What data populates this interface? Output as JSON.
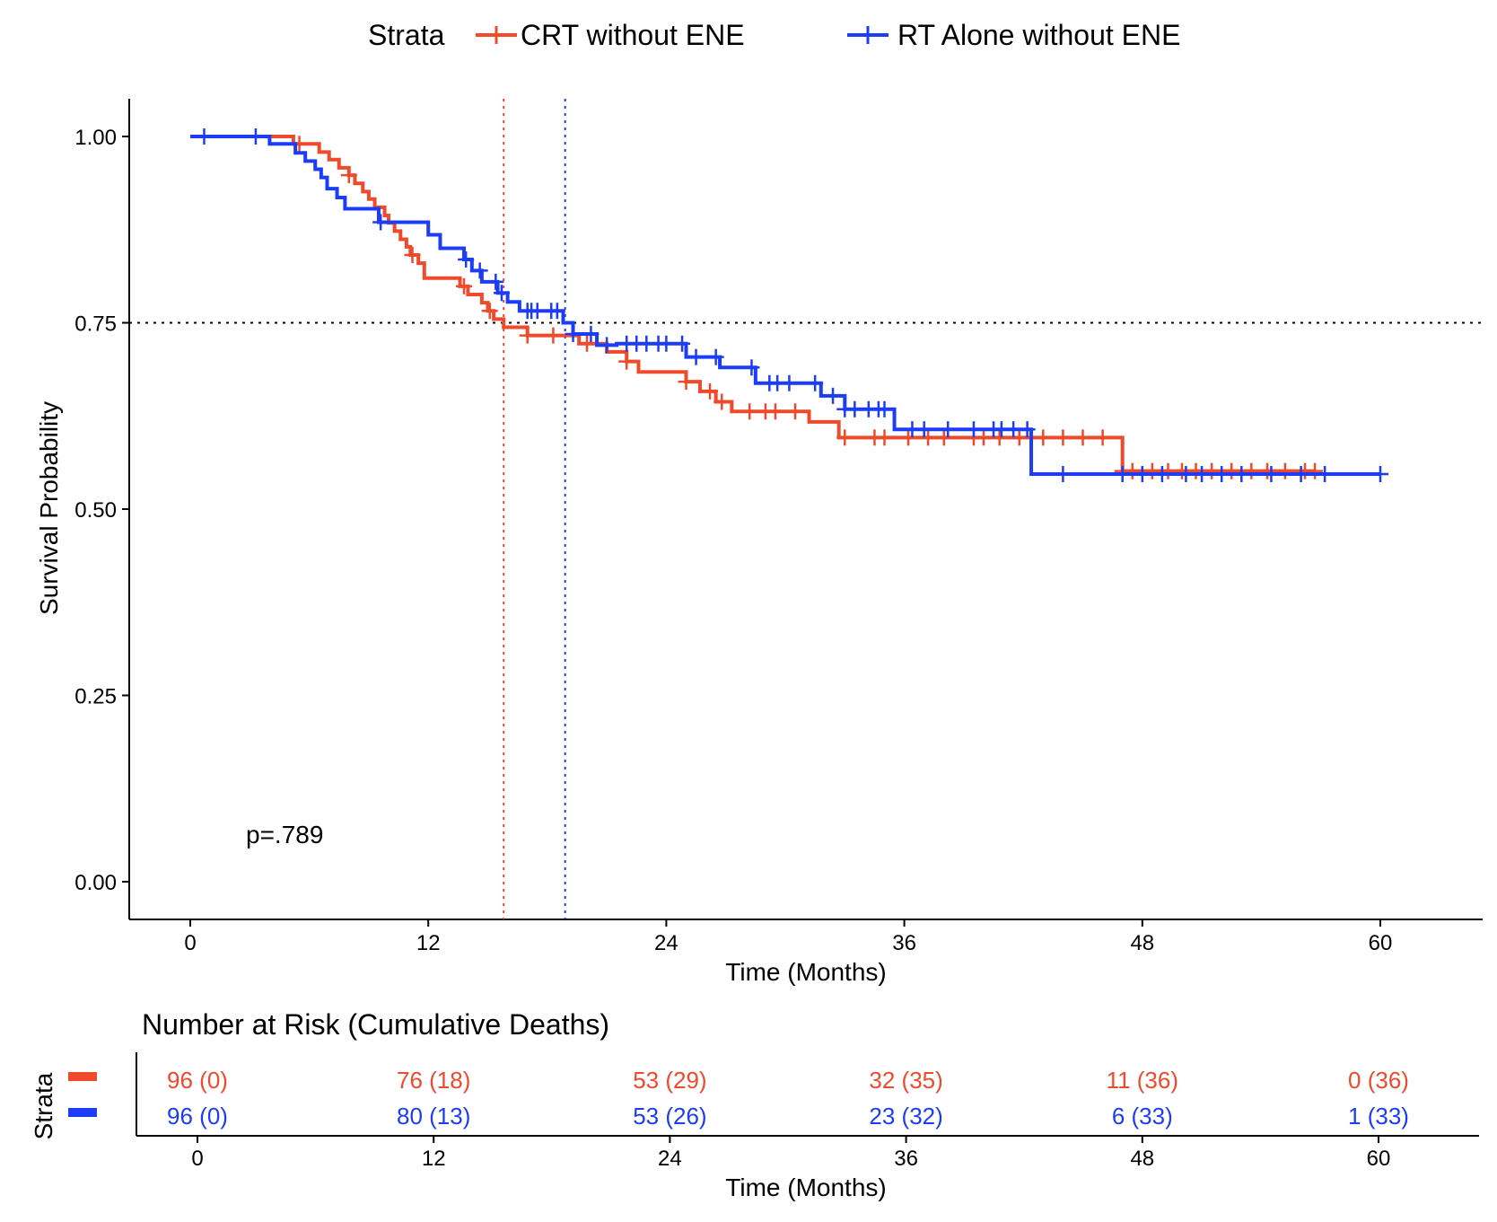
{
  "colors": {
    "crt": "#EE4A2B",
    "rt": "#1C3DF5",
    "axis": "#000000"
  },
  "legend": {
    "title": "Strata",
    "entries": [
      {
        "label": "CRT without ENE",
        "color": "#EE4A2B"
      },
      {
        "label": "RT Alone without ENE",
        "color": "#1C3DF5"
      }
    ]
  },
  "chart_data": {
    "type": "line",
    "subtype": "kaplan-meier step",
    "xlabel": "Time (Months)",
    "ylabel": "Survival Probability",
    "xlim": [
      0,
      60
    ],
    "ylim": [
      0,
      1
    ],
    "x_ticks": [
      "0",
      "12",
      "24",
      "36",
      "48",
      "60"
    ],
    "y_ticks": [
      "0.00",
      "0.25",
      "0.50",
      "0.75",
      "1.00"
    ],
    "grid": false,
    "legend_position": "top",
    "annotation": "p=.789",
    "reference_lines": {
      "horizontal_y": 0.75,
      "median_crt_x": 15.8,
      "median_rt_x": 18.9
    },
    "series": [
      {
        "name": "CRT without ENE",
        "color": "#EE4A2B",
        "steps": [
          [
            0,
            1.0
          ],
          [
            5.2,
            0.99
          ],
          [
            6.5,
            0.979
          ],
          [
            7.0,
            0.969
          ],
          [
            7.5,
            0.958
          ],
          [
            8.0,
            0.948
          ],
          [
            8.3,
            0.937
          ],
          [
            8.7,
            0.926
          ],
          [
            9.0,
            0.916
          ],
          [
            9.3,
            0.905
          ],
          [
            9.8,
            0.894
          ],
          [
            10.0,
            0.884
          ],
          [
            10.3,
            0.873
          ],
          [
            10.6,
            0.862
          ],
          [
            10.9,
            0.852
          ],
          [
            11.1,
            0.841
          ],
          [
            11.5,
            0.83
          ],
          [
            11.8,
            0.81
          ],
          [
            13.6,
            0.799
          ],
          [
            14.0,
            0.788
          ],
          [
            14.7,
            0.777
          ],
          [
            15.0,
            0.766
          ],
          [
            15.3,
            0.755
          ],
          [
            15.8,
            0.744
          ],
          [
            17.0,
            0.733
          ],
          [
            19.6,
            0.722
          ],
          [
            21.0,
            0.711
          ],
          [
            22.0,
            0.698
          ],
          [
            22.6,
            0.684
          ],
          [
            25.0,
            0.671
          ],
          [
            25.7,
            0.658
          ],
          [
            26.5,
            0.644
          ],
          [
            27.3,
            0.631
          ],
          [
            31.2,
            0.617
          ],
          [
            32.7,
            0.596
          ],
          [
            47.0,
            0.551
          ],
          [
            56.7,
            0.551
          ]
        ],
        "censored_x": [
          5.5,
          8.0,
          11.2,
          13.8,
          15.1,
          17.0,
          18.3,
          20.0,
          22.0,
          25.0,
          26.2,
          26.8,
          28.2,
          29.0,
          29.5,
          30.5,
          33.0,
          34.5,
          35.0,
          36.2,
          37.2,
          38.0,
          39.5,
          40.0,
          40.8,
          41.8,
          43.0,
          44.0,
          45.0,
          46.0,
          47.0,
          47.5,
          48.5,
          49.3,
          50.0,
          50.7,
          51.5,
          52.5,
          53.5,
          54.3,
          55.2,
          56.2,
          56.7
        ]
      },
      {
        "name": "RT Alone without ENE",
        "color": "#1C3DF5",
        "steps": [
          [
            0,
            1.0
          ],
          [
            4.0,
            0.99
          ],
          [
            5.3,
            0.978
          ],
          [
            5.8,
            0.967
          ],
          [
            6.3,
            0.956
          ],
          [
            6.6,
            0.945
          ],
          [
            6.9,
            0.93
          ],
          [
            7.4,
            0.918
          ],
          [
            7.8,
            0.903
          ],
          [
            9.5,
            0.885
          ],
          [
            12.0,
            0.868
          ],
          [
            12.6,
            0.85
          ],
          [
            13.8,
            0.835
          ],
          [
            14.2,
            0.82
          ],
          [
            14.7,
            0.805
          ],
          [
            15.5,
            0.79
          ],
          [
            16.0,
            0.778
          ],
          [
            16.6,
            0.766
          ],
          [
            18.8,
            0.75
          ],
          [
            19.3,
            0.735
          ],
          [
            20.5,
            0.72
          ],
          [
            21.5,
            0.722
          ],
          [
            25.0,
            0.704
          ],
          [
            26.7,
            0.69
          ],
          [
            28.5,
            0.669
          ],
          [
            31.8,
            0.652
          ],
          [
            33.0,
            0.634
          ],
          [
            35.5,
            0.607
          ],
          [
            42.4,
            0.547
          ],
          [
            60.0,
            0.547
          ]
        ],
        "censored_x": [
          0.7,
          3.3,
          9.6,
          13.9,
          14.6,
          15.4,
          15.7,
          17.0,
          17.2,
          17.5,
          18.2,
          18.5,
          19.3,
          20.2,
          21.0,
          22.0,
          22.5,
          23.0,
          23.6,
          24.0,
          24.8,
          25.5,
          26.5,
          28.3,
          29.2,
          29.6,
          30.2,
          31.5,
          32.4,
          33.0,
          33.5,
          34.2,
          34.7,
          35.0,
          36.4,
          37.0,
          38.2,
          39.5,
          40.5,
          40.9,
          41.5,
          42.2,
          44.0,
          47.0,
          48.0,
          49.0,
          50.2,
          51.0,
          52.0,
          53.0,
          54.5,
          56.0,
          57.2,
          60.0
        ]
      }
    ]
  },
  "risk_table": {
    "title": "Number at Risk (Cumulative Deaths)",
    "ylabel": "Strata",
    "xlabel": "Time (Months)",
    "x_ticks": [
      "0",
      "12",
      "24",
      "36",
      "48",
      "60"
    ],
    "rows": [
      {
        "color": "#EE4A2B",
        "values": [
          "96 (0)",
          "76 (18)",
          "53 (29)",
          "32 (35)",
          "11 (36)",
          "0 (36)"
        ]
      },
      {
        "color": "#1C3DF5",
        "values": [
          "96 (0)",
          "80 (13)",
          "53 (26)",
          "23 (32)",
          "6 (33)",
          "1 (33)"
        ]
      }
    ]
  }
}
